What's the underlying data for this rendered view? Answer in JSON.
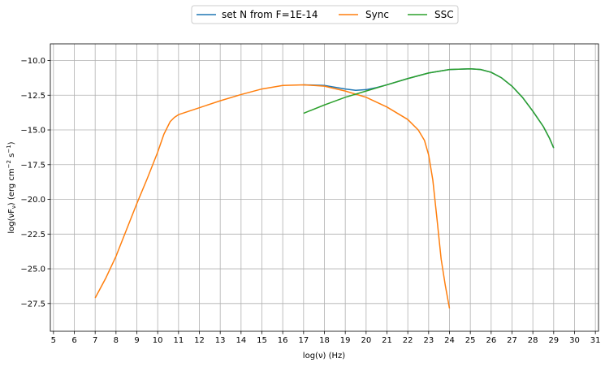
{
  "chart_data": {
    "type": "line",
    "xlabel": "log(ν)  (Hz)",
    "ylabel_main": "log(νF",
    "ylabel_sub": "ν",
    "ylabel_mid": ")  (erg cm",
    "ylabel_sup1": "−2",
    "ylabel_s": "  s",
    "ylabel_sup2": "−1",
    "ylabel_end": ")",
    "xlim": [
      4.85,
      31.15
    ],
    "ylim": [
      -29.5,
      -8.8
    ],
    "x_ticks": [
      5,
      6,
      7,
      8,
      9,
      10,
      11,
      12,
      13,
      14,
      15,
      16,
      17,
      18,
      19,
      20,
      21,
      22,
      23,
      24,
      25,
      26,
      27,
      28,
      29,
      30,
      31
    ],
    "y_ticks": [
      -10.0,
      -12.5,
      -15.0,
      -17.5,
      -20.0,
      -22.5,
      -25.0,
      -27.5
    ],
    "y_tick_labels": [
      "−10.0",
      "−12.5",
      "−15.0",
      "−17.5",
      "−20.0",
      "−22.5",
      "−25.0",
      "−27.5"
    ],
    "grid": true,
    "legend_position": "top-center, outside plot",
    "series": [
      {
        "name": "set N from F=1E-14",
        "color": "#1f77b4",
        "x": [
          17,
          18,
          19,
          19.5,
          20,
          20.5,
          21,
          22,
          23,
          24,
          25,
          25.5,
          26,
          26.5,
          27,
          27.5,
          28,
          28.5,
          28.8,
          29
        ],
        "y": [
          -11.75,
          -11.8,
          -12.05,
          -12.15,
          -12.1,
          -11.95,
          -11.75,
          -11.3,
          -10.9,
          -10.65,
          -10.6,
          -10.65,
          -10.85,
          -11.25,
          -11.85,
          -12.65,
          -13.65,
          -14.75,
          -15.6,
          -16.3
        ]
      },
      {
        "name": "Sync",
        "color": "#ff7f0e",
        "x": [
          7,
          7.5,
          8,
          8.5,
          9,
          9.5,
          10,
          10.3,
          10.6,
          10.8,
          11,
          11.5,
          12,
          13,
          14,
          15,
          16,
          17,
          18,
          19,
          20,
          21,
          22,
          22.5,
          22.8,
          23,
          23.2,
          23.4,
          23.6,
          23.8,
          24
        ],
        "y": [
          -27.1,
          -25.7,
          -24.1,
          -22.2,
          -20.3,
          -18.5,
          -16.6,
          -15.3,
          -14.4,
          -14.1,
          -13.9,
          -13.65,
          -13.4,
          -12.9,
          -12.45,
          -12.05,
          -11.8,
          -11.75,
          -11.85,
          -12.2,
          -12.65,
          -13.35,
          -14.25,
          -15.0,
          -15.75,
          -16.8,
          -18.6,
          -21.4,
          -24.3,
          -26.2,
          -27.85
        ]
      },
      {
        "name": "SSC",
        "color": "#2ca02c",
        "x": [
          17,
          18,
          19,
          20,
          21,
          22,
          23,
          24,
          25,
          25.5,
          26,
          26.5,
          27,
          27.5,
          28,
          28.5,
          28.8,
          29
        ],
        "y": [
          -13.8,
          -13.2,
          -12.65,
          -12.2,
          -11.75,
          -11.3,
          -10.9,
          -10.65,
          -10.6,
          -10.65,
          -10.85,
          -11.25,
          -11.85,
          -12.65,
          -13.65,
          -14.75,
          -15.6,
          -16.3
        ]
      }
    ]
  }
}
